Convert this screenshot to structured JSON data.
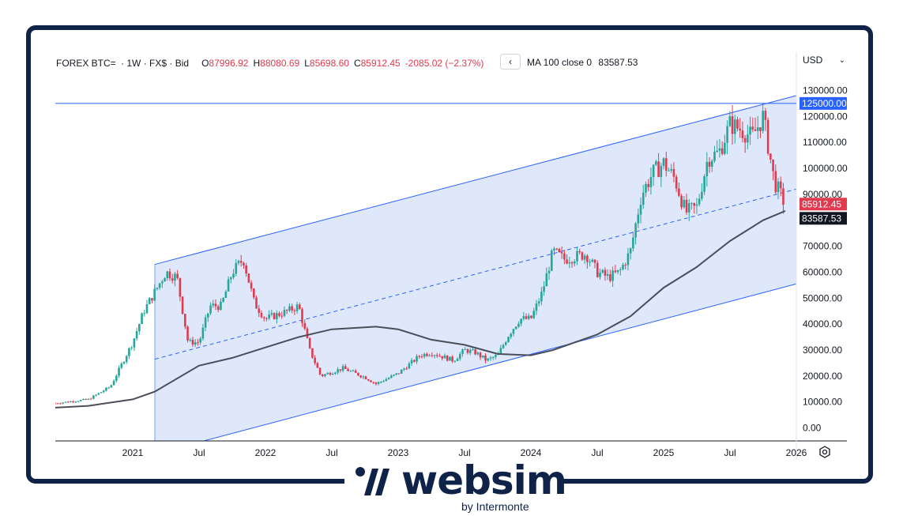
{
  "header": {
    "symbol": "FOREX BTC=",
    "interval": "1W",
    "source": "FX$",
    "price_type": "Bid",
    "open_label": "O",
    "open": "87996.92",
    "high_label": "H",
    "high": "88080.69",
    "low_label": "L",
    "low": "85698.60",
    "close_label": "C",
    "close": "85912.45",
    "change": "-2085.02 (−2.37%)",
    "collapse_icon": "chevron-left-icon",
    "ma_label": "MA 100 close 0",
    "ma_value": "83587.53",
    "currency": "USD",
    "currency_icon": "chevron-down-icon"
  },
  "brand": {
    "name": "websim",
    "sub": "by Intermonte"
  },
  "colors": {
    "up": "#26a69a",
    "down": "#e03a4e",
    "channel": "#2962ff",
    "channel_fill": "#dbe5fb",
    "ma": "#4a4e59",
    "frame": "#0f2247"
  },
  "chart_data": {
    "type": "candlestick",
    "x_ticks": [
      "2021",
      "Jul",
      "2022",
      "Jul",
      "2023",
      "Jul",
      "2024",
      "Jul",
      "2025",
      "Jul",
      "2026"
    ],
    "y_ticks": [
      "0.00",
      "10000.00",
      "20000.00",
      "30000.00",
      "40000.00",
      "50000.00",
      "60000.00",
      "70000.00",
      "80000.00",
      "90000.00",
      "100000.00",
      "110000.00",
      "120000.00",
      "130000.00"
    ],
    "ylim": [
      -5000,
      135000
    ],
    "xlim": [
      "2020-06",
      "2026-01"
    ],
    "price_labels": {
      "level": "125000.00",
      "last": "85912.45",
      "ma": "83587.53"
    },
    "horizontal_line": 125000,
    "channel": {
      "start": "2021-03",
      "upper_start": 63000,
      "upper_end": 128000,
      "mid_start": 26500,
      "mid_end": 92000,
      "lower_start": -10000,
      "lower_end": 55500
    },
    "price_path": [
      [
        "2020-06",
        9500
      ],
      [
        "2020-09",
        11000
      ],
      [
        "2020-11",
        16000
      ],
      [
        "2021-01",
        33000
      ],
      [
        "2021-02",
        45000
      ],
      [
        "2021-04",
        60000
      ],
      [
        "2021-05",
        58000
      ],
      [
        "2021-06",
        33000
      ],
      [
        "2021-07",
        33000
      ],
      [
        "2021-08",
        47000
      ],
      [
        "2021-09",
        47000
      ],
      [
        "2021-10",
        60000
      ],
      [
        "2021-11",
        65000
      ],
      [
        "2021-12",
        48000
      ],
      [
        "2022-01",
        42000
      ],
      [
        "2022-03",
        45000
      ],
      [
        "2022-04",
        47000
      ],
      [
        "2022-05",
        30000
      ],
      [
        "2022-06",
        20000
      ],
      [
        "2022-08",
        23000
      ],
      [
        "2022-10",
        19500
      ],
      [
        "2022-11",
        17000
      ],
      [
        "2023-01",
        21000
      ],
      [
        "2023-03",
        28000
      ],
      [
        "2023-04",
        29000
      ],
      [
        "2023-06",
        26000
      ],
      [
        "2023-07",
        30000
      ],
      [
        "2023-08",
        29000
      ],
      [
        "2023-09",
        26000
      ],
      [
        "2023-10",
        28000
      ],
      [
        "2023-11",
        36000
      ],
      [
        "2023-12",
        42000
      ],
      [
        "2024-01",
        42000
      ],
      [
        "2024-02",
        52000
      ],
      [
        "2024-03",
        68000
      ],
      [
        "2024-04",
        65000
      ],
      [
        "2024-06",
        67000
      ],
      [
        "2024-07",
        60000
      ],
      [
        "2024-08",
        58000
      ],
      [
        "2024-09",
        60000
      ],
      [
        "2024-10",
        68000
      ],
      [
        "2024-11",
        90000
      ],
      [
        "2024-12",
        98000
      ],
      [
        "2025-01",
        102000
      ],
      [
        "2025-02",
        96000
      ],
      [
        "2025-03",
        83000
      ],
      [
        "2025-04",
        85000
      ],
      [
        "2025-05",
        104000
      ],
      [
        "2025-06",
        106000
      ],
      [
        "2025-07",
        117000
      ],
      [
        "2025-08",
        115000
      ],
      [
        "2025-09",
        112000
      ],
      [
        "2025-10",
        120000
      ],
      [
        "2025-11",
        95000
      ],
      [
        "2025-12",
        85912
      ]
    ],
    "ma_path": [
      [
        "2020-06",
        7800
      ],
      [
        "2020-09",
        8500
      ],
      [
        "2021-01",
        11000
      ],
      [
        "2021-03",
        14000
      ],
      [
        "2021-07",
        24000
      ],
      [
        "2021-10",
        27000
      ],
      [
        "2022-01",
        31000
      ],
      [
        "2022-04",
        35000
      ],
      [
        "2022-07",
        38000
      ],
      [
        "2022-11",
        39000
      ],
      [
        "2023-01",
        38000
      ],
      [
        "2023-04",
        34000
      ],
      [
        "2023-07",
        32000
      ],
      [
        "2023-10",
        28500
      ],
      [
        "2024-01",
        28000
      ],
      [
        "2024-03",
        30000
      ],
      [
        "2024-07",
        36000
      ],
      [
        "2024-10",
        43000
      ],
      [
        "2025-01",
        54000
      ],
      [
        "2025-04",
        62000
      ],
      [
        "2025-07",
        72000
      ],
      [
        "2025-10",
        80000
      ],
      [
        "2025-12",
        83587
      ]
    ]
  }
}
